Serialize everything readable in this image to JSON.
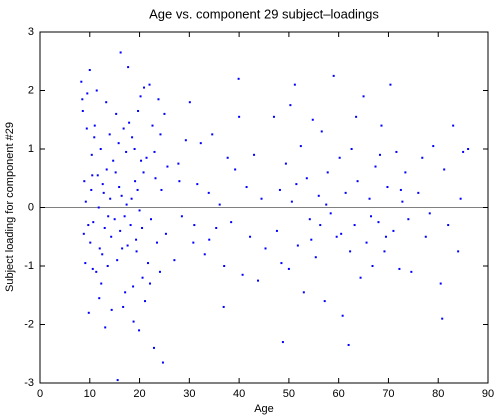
{
  "chart_data": {
    "type": "scatter",
    "title": "Age vs. component 29 subject–loadings",
    "x_label": "Age",
    "y_label": "Subject loading for component #29",
    "color": "#0000ff",
    "xlim": [
      0,
      90
    ],
    "xticks": [
      0,
      10,
      20,
      30,
      40,
      50,
      60,
      70,
      80,
      90
    ],
    "ylim": [
      -3,
      3
    ],
    "yticks": [
      -3,
      -2,
      -1,
      0,
      1,
      2,
      3
    ],
    "zero_line": true,
    "x": [
      8.3,
      8.6,
      8.9,
      9.1,
      9.4,
      9.7,
      10.0,
      10.3,
      10.6,
      10.9,
      8.5,
      8.8,
      9.2,
      9.5,
      9.8,
      10.1,
      10.4,
      10.7,
      11.0,
      11.3,
      11.6,
      11.9,
      12.2,
      12.5,
      12.8,
      13.1,
      13.4,
      13.7,
      14.0,
      14.3,
      11.4,
      11.8,
      12.3,
      12.6,
      13.0,
      13.3,
      13.6,
      14.1,
      14.4,
      14.7,
      15.0,
      15.3,
      15.6,
      15.9,
      16.2,
      16.5,
      16.8,
      17.1,
      17.4,
      17.7,
      15.2,
      15.5,
      15.8,
      16.1,
      16.4,
      16.7,
      17.0,
      17.3,
      17.6,
      17.9,
      18.2,
      18.5,
      18.8,
      19.1,
      19.4,
      19.7,
      20.0,
      20.3,
      20.6,
      20.9,
      18.4,
      18.7,
      19.0,
      19.3,
      19.6,
      19.9,
      20.2,
      20.5,
      20.8,
      21.1,
      21.4,
      21.7,
      22.0,
      22.3,
      22.6,
      22.9,
      23.2,
      23.5,
      23.8,
      24.1,
      24.4,
      24.7,
      25.0,
      25.3,
      25.6,
      22.1,
      23.0,
      24.2,
      12.0,
      10.5,
      27.0,
      27.8,
      28.5,
      29.3,
      30.1,
      30.8,
      31.6,
      32.3,
      33.1,
      33.9,
      34.6,
      35.4,
      36.1,
      36.9,
      37.7,
      38.4,
      39.2,
      39.9,
      40.7,
      41.5,
      42.2,
      43.0,
      43.8,
      44.5,
      45.3,
      28.0,
      31.0,
      34.0,
      37.0,
      40.0,
      47.0,
      47.6,
      48.2,
      48.8,
      49.4,
      50.0,
      50.6,
      51.2,
      51.8,
      52.4,
      53.0,
      53.6,
      54.2,
      54.8,
      55.4,
      56.0,
      56.6,
      57.2,
      57.8,
      58.4,
      59.0,
      59.6,
      60.2,
      60.8,
      61.4,
      62.0,
      62.6,
      63.2,
      63.8,
      64.4,
      65.0,
      65.6,
      66.2,
      66.8,
      67.4,
      68.0,
      68.6,
      69.2,
      69.8,
      70.4,
      71.0,
      71.6,
      72.2,
      72.8,
      73.4,
      74.0,
      74.6,
      48.5,
      51.5,
      54.5,
      57.5,
      60.5,
      63.5,
      66.5,
      69.5,
      72.5,
      50.3,
      56.3,
      62.3,
      68.3,
      76.0,
      77.5,
      79.0,
      80.5,
      81.2,
      82.0,
      83.0,
      84.0,
      85.0,
      84.5,
      80.8,
      76.8,
      78.3,
      86.0
    ],
    "values": [
      2.15,
      1.65,
      0.45,
      -0.95,
      1.35,
      -0.3,
      2.35,
      0.3,
      -1.05,
      1.2,
      1.85,
      -0.45,
      0.1,
      1.95,
      -1.8,
      -0.6,
      0.9,
      -0.25,
      1.4,
      -1.1,
      0.55,
      -1.55,
      1.0,
      -0.8,
      0.25,
      -2.05,
      0.65,
      -0.15,
      1.25,
      -0.5,
      2.0,
      0.0,
      -1.3,
      0.4,
      -0.35,
      1.8,
      -1.0,
      0.15,
      -1.75,
      0.8,
      -0.2,
      1.6,
      -2.95,
      0.35,
      2.65,
      -0.7,
      1.35,
      -1.45,
      0.05,
      2.4,
      0.6,
      -0.9,
      1.1,
      -0.4,
      0.2,
      -1.7,
      -0.15,
      0.95,
      -0.65,
      1.45,
      -0.3,
      1.2,
      -1.95,
      0.45,
      -0.75,
      1.65,
      -0.05,
      0.8,
      -1.2,
      2.05,
      0.15,
      -1.35,
      1.0,
      -0.55,
      0.3,
      -2.1,
      1.9,
      -0.35,
      0.6,
      -1.6,
      0.85,
      -0.95,
      2.1,
      -0.2,
      1.4,
      -2.4,
      0.5,
      -0.6,
      1.85,
      -1.1,
      0.3,
      -2.65,
      1.6,
      -0.45,
      0.7,
      -1.3,
      0.95,
      1.25,
      -0.7,
      0.55,
      -0.9,
      0.75,
      -0.15,
      1.15,
      1.8,
      -0.6,
      0.4,
      1.1,
      -0.8,
      0.25,
      1.25,
      -0.35,
      0.05,
      -1.7,
      0.85,
      -0.25,
      0.65,
      2.2,
      -1.15,
      0.35,
      -0.5,
      0.9,
      -1.25,
      0.15,
      -0.7,
      0.45,
      -0.3,
      -0.55,
      -1.0,
      1.55,
      1.55,
      -0.4,
      0.3,
      -2.3,
      0.75,
      -1.05,
      0.1,
      2.1,
      -0.65,
      1.05,
      -1.45,
      0.5,
      -0.2,
      1.5,
      -0.85,
      0.2,
      1.3,
      -1.6,
      0.6,
      -0.1,
      2.25,
      -0.5,
      0.85,
      -1.85,
      0.25,
      -2.35,
      1.0,
      -0.3,
      0.45,
      -1.2,
      1.9,
      -0.6,
      0.15,
      -1.0,
      0.7,
      -0.25,
      1.4,
      -0.75,
      0.35,
      2.1,
      -0.4,
      0.95,
      -1.05,
      0.1,
      0.6,
      -0.2,
      -1.1,
      -0.95,
      0.4,
      -0.55,
      0.05,
      -0.45,
      1.55,
      -0.15,
      -0.5,
      0.3,
      1.75,
      -0.3,
      -0.75,
      0.9,
      0.25,
      -0.5,
      1.05,
      -1.3,
      0.65,
      -0.3,
      1.4,
      -0.75,
      0.95,
      0.15,
      -1.9,
      0.85,
      -0.1,
      1.0
    ]
  }
}
